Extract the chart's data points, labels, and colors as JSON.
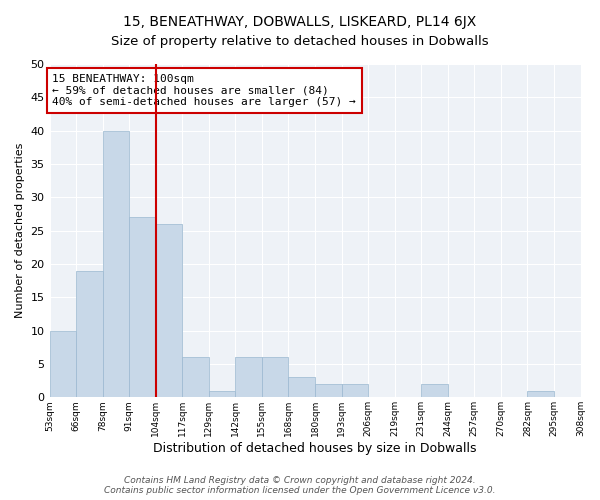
{
  "title": "15, BENEATHWAY, DOBWALLS, LISKEARD, PL14 6JX",
  "subtitle": "Size of property relative to detached houses in Dobwalls",
  "xlabel": "Distribution of detached houses by size in Dobwalls",
  "ylabel": "Number of detached properties",
  "bar_values": [
    10,
    19,
    40,
    27,
    26,
    6,
    1,
    6,
    6,
    3,
    2,
    2,
    0,
    0,
    2,
    0,
    0,
    0,
    1,
    0
  ],
  "bin_labels": [
    "53sqm",
    "66sqm",
    "78sqm",
    "91sqm",
    "104sqm",
    "117sqm",
    "129sqm",
    "142sqm",
    "155sqm",
    "168sqm",
    "180sqm",
    "193sqm",
    "206sqm",
    "219sqm",
    "231sqm",
    "244sqm",
    "257sqm",
    "270sqm",
    "282sqm",
    "295sqm",
    "308sqm"
  ],
  "bar_color": "#c8d8e8",
  "bar_edge_color": "#9ab8d0",
  "vline_color": "#cc0000",
  "annotation_text": "15 BENEATHWAY: 100sqm\n← 59% of detached houses are smaller (84)\n40% of semi-detached houses are larger (57) →",
  "annotation_box_color": "#ffffff",
  "annotation_box_edge": "#cc0000",
  "ylim": [
    0,
    50
  ],
  "yticks": [
    0,
    5,
    10,
    15,
    20,
    25,
    30,
    35,
    40,
    45,
    50
  ],
  "bg_color": "#eef2f7",
  "footer_text": "Contains HM Land Registry data © Crown copyright and database right 2024.\nContains public sector information licensed under the Open Government Licence v3.0.",
  "title_fontsize": 10,
  "subtitle_fontsize": 9.5,
  "annotation_fontsize": 8,
  "vline_bar_index": 4
}
